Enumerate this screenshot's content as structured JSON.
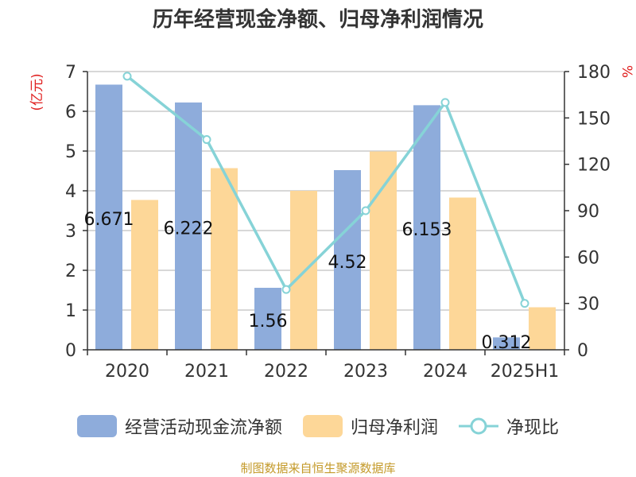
{
  "title": "历年经营现金净额、归母净利润情况",
  "source": "制图数据来自恒生聚源数据库",
  "legend": {
    "ocf": "经营活动现金流净额",
    "np": "归母净利润",
    "ratio": "净现比"
  },
  "colors": {
    "ocf": "#8eacdb",
    "np": "#fdd798",
    "ratio": "#86d3d7",
    "left_unit": "#e02020",
    "right_unit": "#e02020",
    "source": "#c49a2a"
  },
  "chart_data": {
    "type": "bar",
    "categories": [
      "2020",
      "2021",
      "2022",
      "2023",
      "2024",
      "2025H1"
    ],
    "left_axis": {
      "unit": "(亿元)",
      "ylim": [
        0,
        7
      ],
      "ticks": [
        0,
        1,
        2,
        3,
        4,
        5,
        6,
        7
      ]
    },
    "right_axis": {
      "unit": "%",
      "ylim": [
        0,
        180
      ],
      "ticks": [
        0,
        30,
        60,
        90,
        120,
        150,
        180
      ]
    },
    "series": [
      {
        "name": "经营活动现金流净额",
        "type": "bar",
        "axis": "left",
        "values": [
          6.671,
          6.222,
          1.56,
          4.52,
          6.153,
          0.312
        ],
        "labels": [
          "6.671",
          "6.222",
          "1.56",
          "4.52",
          "6.153",
          "0.312"
        ]
      },
      {
        "name": "归母净利润",
        "type": "bar",
        "axis": "left",
        "values": [
          3.77,
          4.57,
          4.0,
          4.99,
          3.83,
          1.07
        ]
      },
      {
        "name": "净现比",
        "type": "line",
        "axis": "right",
        "values": [
          177,
          136,
          39,
          90,
          160,
          30
        ]
      }
    ],
    "grid": true,
    "legend_position": "bottom"
  }
}
